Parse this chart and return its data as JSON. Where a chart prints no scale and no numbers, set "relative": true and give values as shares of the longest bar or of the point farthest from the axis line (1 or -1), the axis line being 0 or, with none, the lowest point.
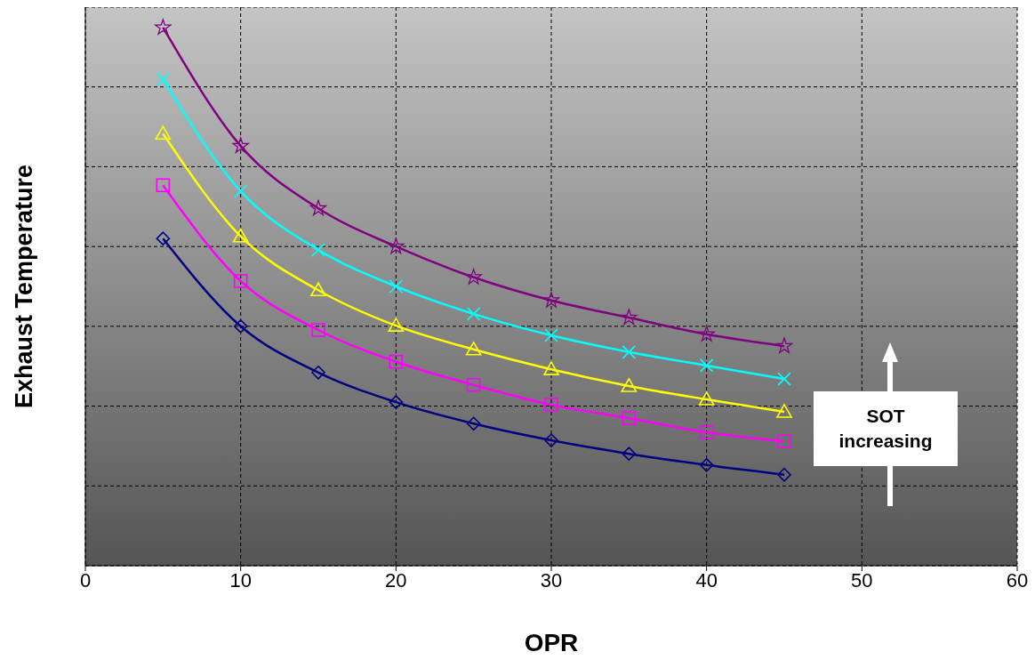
{
  "chart_data": {
    "type": "line",
    "xlabel": "OPR",
    "ylabel": "Exhaust Temperature",
    "relative": true,
    "x": [
      5,
      10,
      15,
      20,
      25,
      30,
      35,
      40,
      45
    ],
    "xlim": [
      0,
      60
    ],
    "xticks": [
      0,
      10,
      20,
      30,
      40,
      50,
      60
    ],
    "grid": true,
    "legend": false,
    "line_style": "solid",
    "annotations": [
      "SOT increasing"
    ],
    "series": [
      {
        "color": "#800080",
        "marker": "star",
        "values": [
          1,
          0.78,
          0.664,
          0.593,
          0.536,
          0.493,
          0.461,
          0.43,
          0.408
        ]
      },
      {
        "color": "#00ffff",
        "marker": "cross",
        "values": [
          0.904,
          0.696,
          0.587,
          0.519,
          0.468,
          0.428,
          0.397,
          0.372,
          0.347
        ]
      },
      {
        "color": "#ffff00",
        "marker": "triangle",
        "values": [
          0.803,
          0.612,
          0.512,
          0.446,
          0.402,
          0.365,
          0.334,
          0.309,
          0.286
        ]
      },
      {
        "color": "#ff00ff",
        "marker": "square",
        "values": [
          0.707,
          0.529,
          0.438,
          0.379,
          0.336,
          0.299,
          0.274,
          0.248,
          0.231
        ]
      },
      {
        "color": "#000080",
        "marker": "diamond",
        "values": [
          0.608,
          0.445,
          0.359,
          0.304,
          0.264,
          0.233,
          0.208,
          0.187,
          0.169
        ]
      }
    ]
  }
}
